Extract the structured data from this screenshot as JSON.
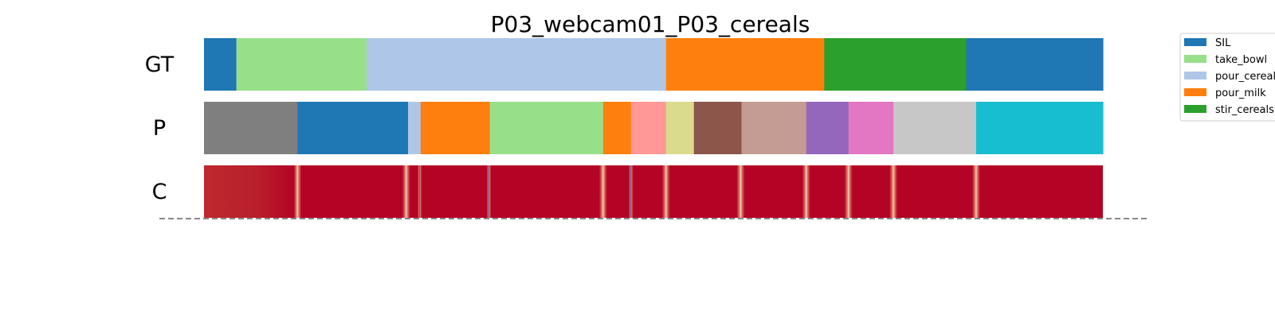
{
  "chart_data": {
    "type": "segmentation",
    "title": "P03_webcam01_P03_cereals",
    "x_range": [
      0,
      1000
    ],
    "rows": [
      {
        "label": "GT",
        "segments": [
          {
            "start": 0,
            "end": 36,
            "class": "SIL"
          },
          {
            "start": 36,
            "end": 181,
            "class": "take_bowl"
          },
          {
            "start": 181,
            "end": 514,
            "class": "pour_cereals"
          },
          {
            "start": 514,
            "end": 690,
            "class": "pour_milk"
          },
          {
            "start": 690,
            "end": 848,
            "class": "stir_cereals"
          },
          {
            "start": 848,
            "end": 1000,
            "class": "SIL"
          }
        ]
      },
      {
        "label": "P",
        "segments": [
          {
            "start": 0,
            "end": 104,
            "class": "c_gray"
          },
          {
            "start": 104,
            "end": 227,
            "class": "SIL"
          },
          {
            "start": 227,
            "end": 241,
            "class": "pour_cereals"
          },
          {
            "start": 241,
            "end": 318,
            "class": "pour_milk"
          },
          {
            "start": 318,
            "end": 444,
            "class": "take_bowl"
          },
          {
            "start": 444,
            "end": 475,
            "class": "pour_milk"
          },
          {
            "start": 475,
            "end": 514,
            "class": "c_pink_light"
          },
          {
            "start": 514,
            "end": 545,
            "class": "c_olive_light"
          },
          {
            "start": 545,
            "end": 598,
            "class": "c_brown"
          },
          {
            "start": 598,
            "end": 670,
            "class": "c_brown_light"
          },
          {
            "start": 670,
            "end": 717,
            "class": "c_purple"
          },
          {
            "start": 717,
            "end": 767,
            "class": "c_pink"
          },
          {
            "start": 767,
            "end": 859,
            "class": "c_gray_light"
          },
          {
            "start": 859,
            "end": 1000,
            "class": "c_cyan"
          }
        ]
      },
      {
        "label": "C",
        "type": "heatmap",
        "base_color": "#b40426",
        "boundary_color": "#e8d0c8",
        "low_color": "#3b4cc0",
        "dips": [
          {
            "x": 104,
            "low": false
          },
          {
            "x": 225,
            "low": false
          },
          {
            "x": 240,
            "low": true
          },
          {
            "x": 317,
            "low": true
          },
          {
            "x": 444,
            "low": false
          },
          {
            "x": 475,
            "low": true
          },
          {
            "x": 514,
            "low": false
          },
          {
            "x": 597,
            "low": false
          },
          {
            "x": 670,
            "low": false
          },
          {
            "x": 717,
            "low": false
          },
          {
            "x": 767,
            "low": false
          },
          {
            "x": 859,
            "low": false
          }
        ]
      }
    ],
    "legend": {
      "placement": "top-right",
      "entries": [
        {
          "label": "SIL",
          "color": "#1f77b4"
        },
        {
          "label": "take_bowl",
          "color": "#98df8a"
        },
        {
          "label": "pour_cereals",
          "color": "#aec7e8"
        },
        {
          "label": "pour_milk",
          "color": "#ff7f0e"
        },
        {
          "label": "stir_cereals",
          "color": "#2ca02c"
        }
      ]
    },
    "colors": {
      "SIL": "#1f77b4",
      "take_bowl": "#98df8a",
      "pour_cereals": "#aec7e8",
      "pour_milk": "#ff7f0e",
      "stir_cereals": "#2ca02c",
      "c_gray": "#7f7f7f",
      "c_pink_light": "#ff9896",
      "c_olive_light": "#dbdb8d",
      "c_brown": "#8c564b",
      "c_brown_light": "#c49c94",
      "c_purple": "#9467bd",
      "c_pink": "#e377c2",
      "c_gray_light": "#c7c7c7",
      "c_cyan": "#17becf"
    }
  }
}
